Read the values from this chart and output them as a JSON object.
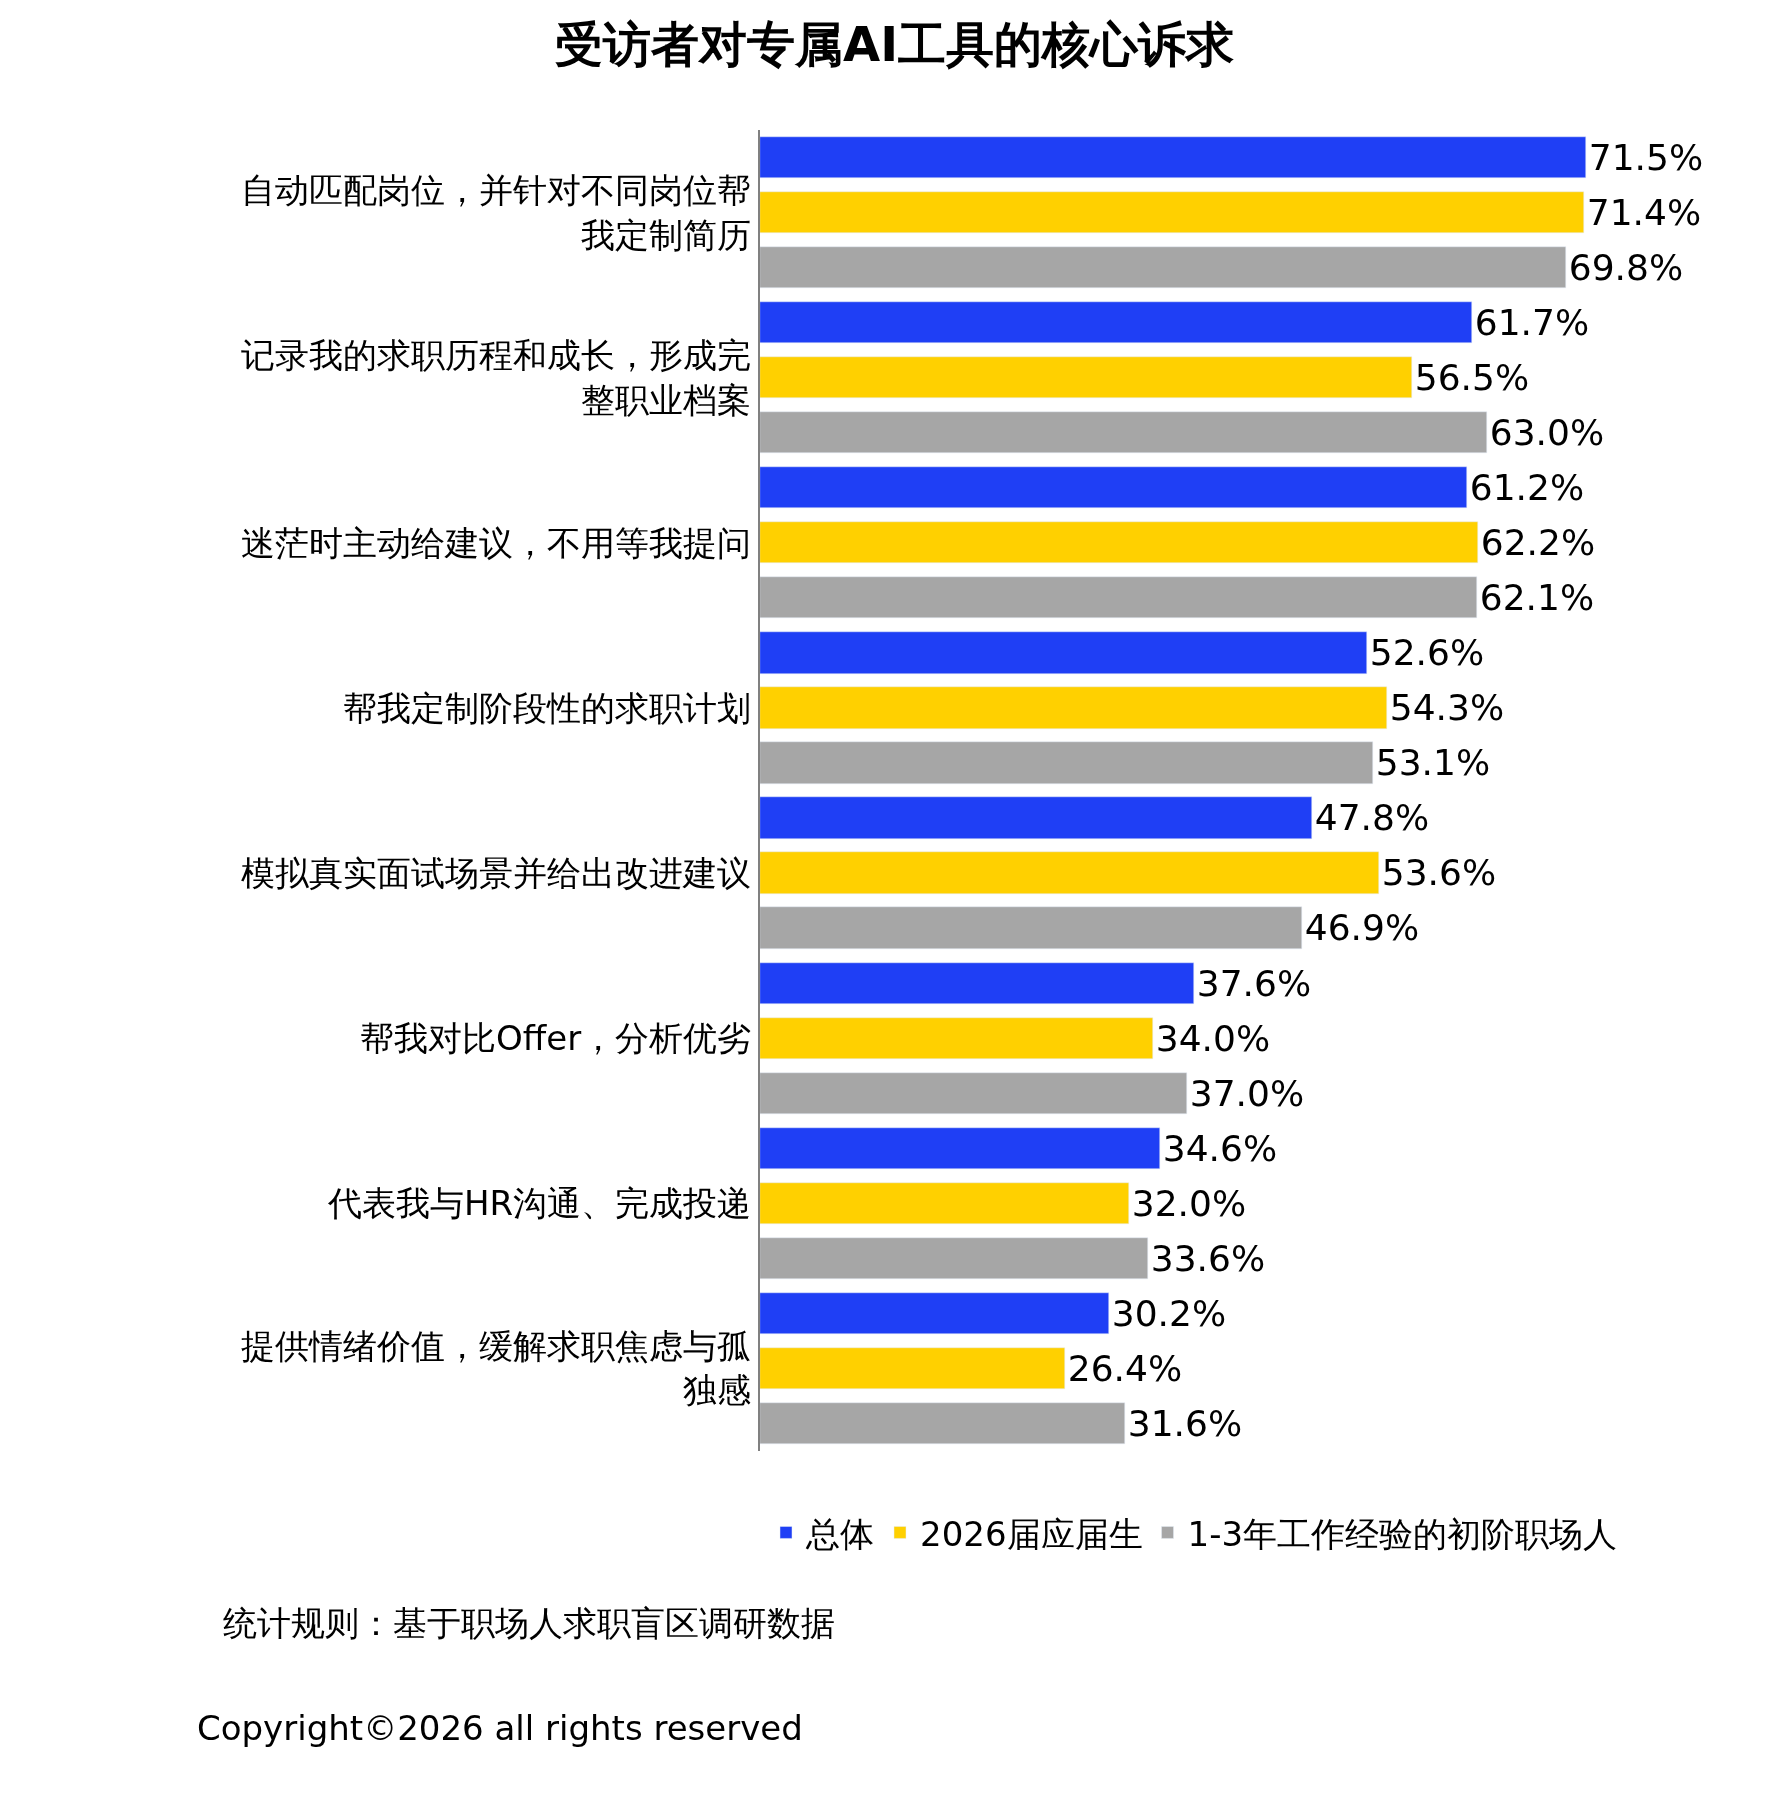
{
  "chart_data": {
    "type": "bar",
    "orientation": "horizontal",
    "title": "受访者对专属AI工具的核心诉求",
    "categories": [
      "自动匹配岗位，并针对不同岗位帮我定制简历",
      "记录我的求职历程和成长，形成完整职业档案",
      "迷茫时主动给建议，不用等我提问",
      "帮我定制阶段性的求职计划",
      "模拟真实面试场景并给出改进建议",
      "帮我对比Offer，分析优劣",
      "代表我与HR沟通、完成投递",
      "提供情绪价值，缓解求职焦虑与孤独感"
    ],
    "series": [
      {
        "name": "总体",
        "color": "#1f3ff5",
        "values": [
          71.5,
          61.7,
          61.2,
          52.6,
          47.8,
          37.6,
          34.6,
          30.2
        ],
        "value_labels": [
          "71.5%",
          "61.7%",
          "61.2%",
          "52.6%",
          "47.8%",
          "37.6%",
          "34.6%",
          "30.2%"
        ]
      },
      {
        "name": "2026届应届生",
        "color": "#ffd000",
        "values": [
          71.4,
          56.5,
          62.2,
          54.3,
          53.6,
          34.0,
          32.0,
          26.4
        ],
        "value_labels": [
          "71.4%",
          "56.5%",
          "62.2%",
          "54.3%",
          "53.6%",
          "34.0%",
          "32.0%",
          "26.4%"
        ]
      },
      {
        "name": "1-3年工作经验的初阶职场人",
        "color": "#a6a6a6",
        "values": [
          69.8,
          63.0,
          62.1,
          53.1,
          46.9,
          37.0,
          33.6,
          31.6
        ],
        "value_labels": [
          "69.8%",
          "63.0%",
          "62.1%",
          "53.1%",
          "46.9%",
          "37.0%",
          "33.6%",
          "31.6%"
        ]
      }
    ],
    "legend": "bottom",
    "annotations": [
      "统计规则：基于职场人求职盲区调研数据",
      "Copyright©2026 all rights reserved"
    ]
  }
}
